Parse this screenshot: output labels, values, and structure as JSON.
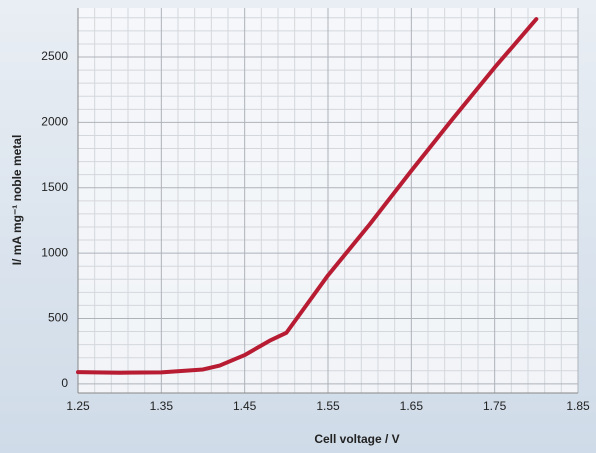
{
  "chart_data": {
    "type": "line",
    "x_label": "Cell voltage / V",
    "y_label": "I/  mA mg⁻¹ noble metal",
    "x": [
      1.25,
      1.3,
      1.35,
      1.4,
      1.42,
      1.45,
      1.48,
      1.5,
      1.55,
      1.6,
      1.65,
      1.7,
      1.75,
      1.8
    ],
    "series": [
      {
        "color": "#b81c33",
        "values": [
          90,
          85,
          88,
          110,
          140,
          220,
          330,
          390,
          830,
          1220,
          1630,
          2030,
          2420,
          2790
        ]
      }
    ],
    "xlim": [
      1.25,
      1.85
    ],
    "xticks": [
      1.25,
      1.35,
      1.45,
      1.55,
      1.65,
      1.75,
      1.85
    ],
    "ylim": [
      -70,
      2875
    ],
    "yticks": [
      0,
      500,
      1000,
      1500,
      2000,
      2500
    ],
    "grid": true
  }
}
